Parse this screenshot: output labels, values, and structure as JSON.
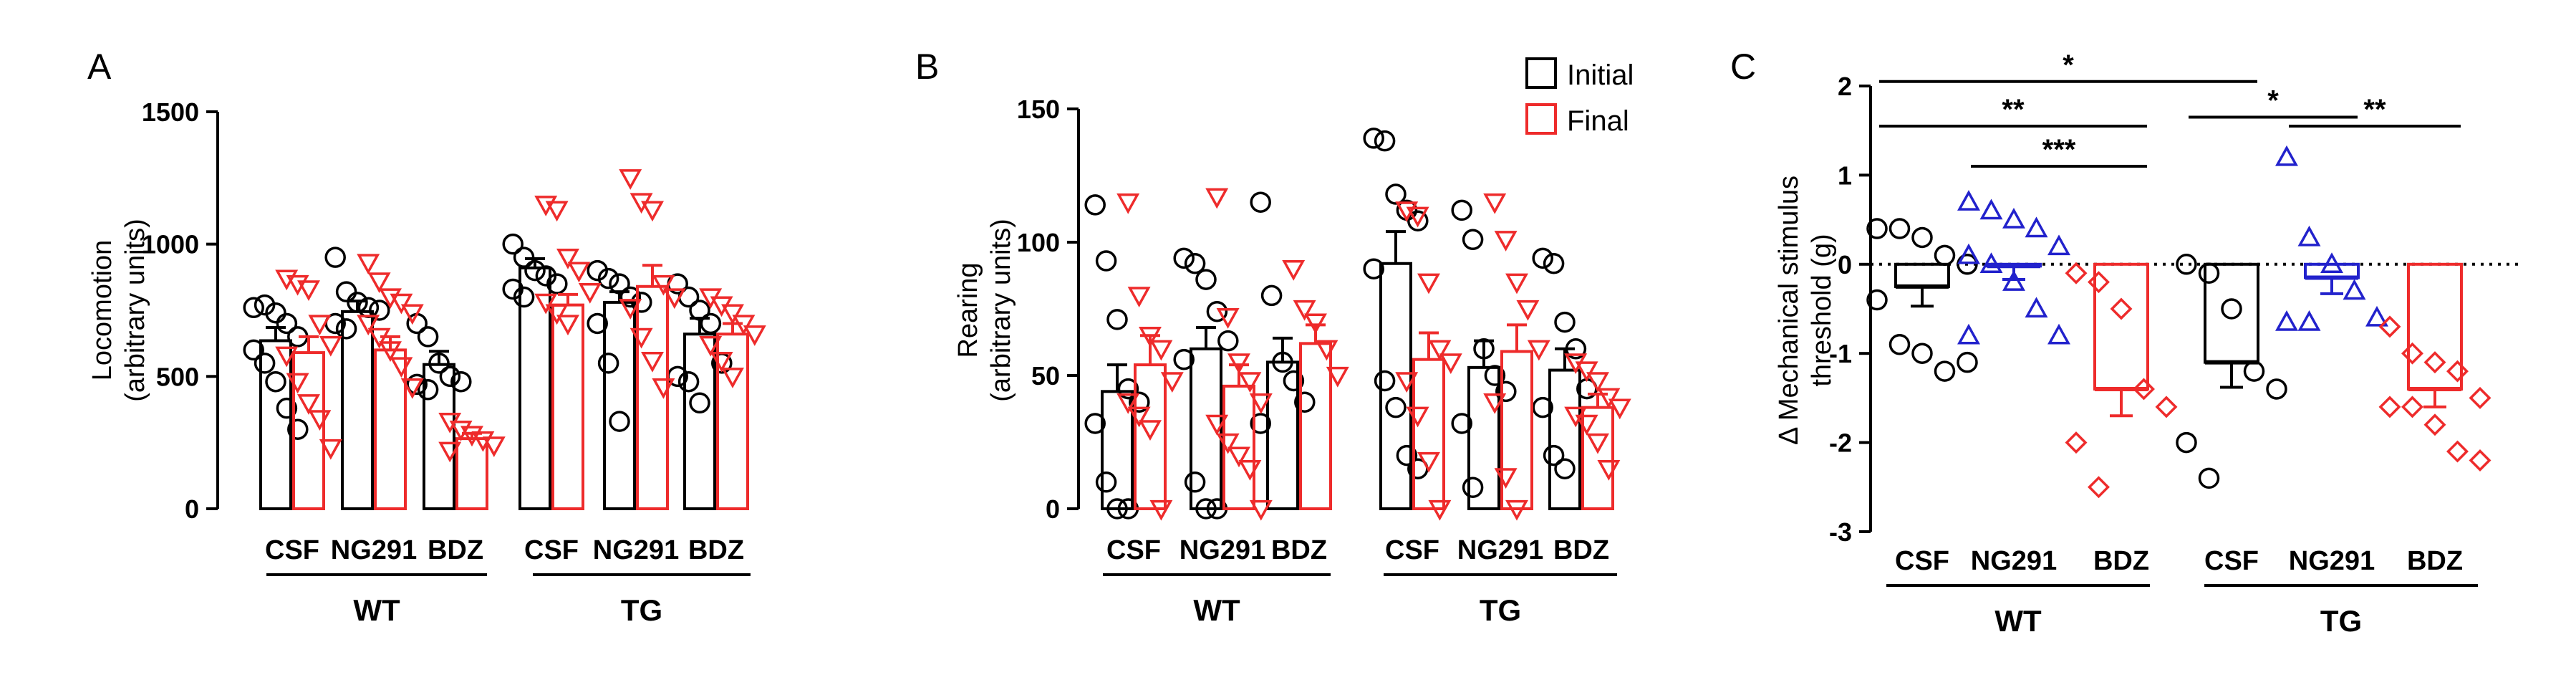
{
  "colors": {
    "initial": "#000000",
    "final": "#ee2b2b",
    "ng291": "#2222cc",
    "bdz": "#ee2b2b"
  },
  "legend": {
    "initial": "Initial",
    "final": "Final"
  },
  "chart_data": [
    {
      "id": "A",
      "panel_label": "A",
      "type": "bar",
      "ylabel": "Locomotion\n(arbitrary units)",
      "ylim": [
        0,
        1500
      ],
      "yticks": [
        0,
        500,
        1000,
        1500
      ],
      "categories": [
        "CSF",
        "NG291",
        "BDZ",
        "CSF",
        "NG291",
        "BDZ"
      ],
      "groups": [
        {
          "name": "WT",
          "span": [
            0,
            2
          ]
        },
        {
          "name": "TG",
          "span": [
            3,
            5
          ]
        }
      ],
      "series": [
        {
          "name": "Initial",
          "marker": "circle",
          "values": [
            635,
            745,
            545,
            910,
            780,
            660
          ],
          "errors": [
            50,
            40,
            50,
            35,
            40,
            60
          ],
          "points": [
            [
              760,
              770,
              740,
              700,
              650,
              600,
              550,
              480,
              380,
              300
            ],
            [
              950,
              820,
              780,
              760,
              750,
              700,
              680
            ],
            [
              700,
              650,
              550,
              500,
              480,
              470,
              450
            ],
            [
              1000,
              950,
              900,
              880,
              850,
              830,
              800
            ],
            [
              900,
              870,
              850,
              800,
              780,
              700,
              550,
              330
            ],
            [
              850,
              800,
              750,
              700,
              550,
              500,
              480,
              400
            ]
          ]
        },
        {
          "name": "Final",
          "marker": "triangle",
          "values": [
            590,
            600,
            265,
            770,
            840,
            660
          ],
          "errors": [
            60,
            50,
            20,
            40,
            80,
            40
          ],
          "points": [
            [
              870,
              850,
              830,
              700,
              620,
              580,
              480,
              400,
              340,
              230
            ],
            [
              930,
              860,
              800,
              780,
              740,
              700,
              650,
              600,
              540,
              460
            ],
            [
              330,
              300,
              280,
              260,
              240,
              220
            ],
            [
              1150,
              1130,
              950,
              900,
              820,
              780,
              740,
              700
            ],
            [
              1250,
              1160,
              1130,
              850,
              800,
              760,
              650,
              560,
              460
            ],
            [
              800,
              770,
              740,
              700,
              660,
              620,
              560,
              500
            ]
          ]
        }
      ]
    },
    {
      "id": "B",
      "panel_label": "B",
      "type": "bar",
      "ylabel": "Rearing\n(arbitrary units)",
      "ylim": [
        0,
        150
      ],
      "yticks": [
        0,
        50,
        100,
        150
      ],
      "categories": [
        "CSF",
        "NG291",
        "BDZ",
        "CSF",
        "NG291",
        "BDZ"
      ],
      "groups": [
        {
          "name": "WT",
          "span": [
            0,
            2
          ]
        },
        {
          "name": "TG",
          "span": [
            3,
            5
          ]
        }
      ],
      "series": [
        {
          "name": "Initial",
          "marker": "circle",
          "values": [
            44,
            60,
            55,
            92,
            53,
            52
          ],
          "errors": [
            10,
            8,
            9,
            12,
            10,
            8
          ],
          "points": [
            [
              114,
              93,
              71,
              45,
              40,
              32,
              10,
              0,
              0
            ],
            [
              94,
              92,
              86,
              74,
              63,
              56,
              10,
              0,
              0
            ],
            [
              115,
              80,
              55,
              48,
              40,
              32
            ],
            [
              139,
              138,
              118,
              112,
              108,
              90,
              48,
              38,
              20,
              15
            ],
            [
              112,
              101,
              60,
              50,
              44,
              32,
              8
            ],
            [
              94,
              92,
              70,
              60,
              45,
              38,
              20,
              15
            ]
          ]
        },
        {
          "name": "Final",
          "marker": "triangle",
          "values": [
            54,
            46,
            62,
            56,
            59,
            38
          ],
          "errors": [
            11,
            8,
            7,
            10,
            10,
            5
          ],
          "points": [
            [
              115,
              80,
              65,
              60,
              48,
              40,
              35,
              30,
              0
            ],
            [
              117,
              72,
              55,
              48,
              40,
              32,
              25,
              20,
              15,
              0
            ],
            [
              90,
              75,
              70,
              60,
              50
            ],
            [
              112,
              110,
              85,
              60,
              55,
              48,
              35,
              18,
              0
            ],
            [
              115,
              101,
              85,
              75,
              60,
              40,
              12,
              0
            ],
            [
              55,
              52,
              48,
              42,
              38,
              35,
              32,
              25,
              15
            ]
          ]
        }
      ]
    },
    {
      "id": "C",
      "panel_label": "C",
      "type": "bar",
      "ylabel": "Δ Mechanical stimulus\nthreshold (g)",
      "ylim": [
        -3,
        2
      ],
      "yticks": [
        -3,
        -2,
        -1,
        0,
        1,
        2
      ],
      "categories": [
        "CSF",
        "NG291",
        "BDZ",
        "CSF",
        "NG291",
        "BDZ"
      ],
      "groups": [
        {
          "name": "WT",
          "span": [
            0,
            2
          ]
        },
        {
          "name": "TG",
          "span": [
            3,
            5
          ]
        }
      ],
      "bars": [
        {
          "value": -0.25,
          "error": 0.22,
          "marker": "circle",
          "color": "#000000",
          "points": [
            0.4,
            0.4,
            0.3,
            0.1,
            0,
            -0.4,
            -0.9,
            -1,
            -1.2,
            -1.1
          ]
        },
        {
          "value": -0.02,
          "error": 0.15,
          "marker": "triangle",
          "color": "#2222cc",
          "points": [
            0.7,
            0.6,
            0.5,
            0.4,
            0.2,
            0.1,
            0,
            -0.2,
            -0.5,
            -0.8,
            -0.8
          ]
        },
        {
          "value": -1.4,
          "error": 0.3,
          "marker": "diamond",
          "color": "#ee2b2b",
          "points": [
            -0.1,
            -0.2,
            -0.5,
            -1.4,
            -1.6,
            -2,
            -2.5
          ]
        },
        {
          "value": -1.1,
          "error": 0.28,
          "marker": "circle",
          "color": "#000000",
          "points": [
            0,
            -0.1,
            -0.5,
            -1.2,
            -1.4,
            -2,
            -2.4
          ]
        },
        {
          "value": -0.15,
          "error": 0.18,
          "marker": "triangle",
          "color": "#2222cc",
          "points": [
            1.2,
            0.3,
            0,
            -0.3,
            -0.6,
            -0.65,
            -0.65
          ]
        },
        {
          "value": -1.4,
          "error": 0.2,
          "marker": "diamond",
          "color": "#ee2b2b",
          "points": [
            -0.7,
            -1,
            -1.1,
            -1.2,
            -1.5,
            -1.6,
            -1.6,
            -1.8,
            -2.1,
            -2.2
          ]
        }
      ],
      "zero_line": "dotted",
      "significance": [
        {
          "from": 0,
          "to": 3,
          "y": 2.05,
          "label": "*"
        },
        {
          "from": 0,
          "to": 2,
          "y": 1.55,
          "label": "**"
        },
        {
          "from": 1,
          "to": 2,
          "y": 1.1,
          "label": "***"
        },
        {
          "from": 3,
          "to": 4,
          "y": 1.65,
          "label": "*"
        },
        {
          "from": 4,
          "to": 5,
          "y": 1.55,
          "label": "**"
        }
      ]
    }
  ]
}
